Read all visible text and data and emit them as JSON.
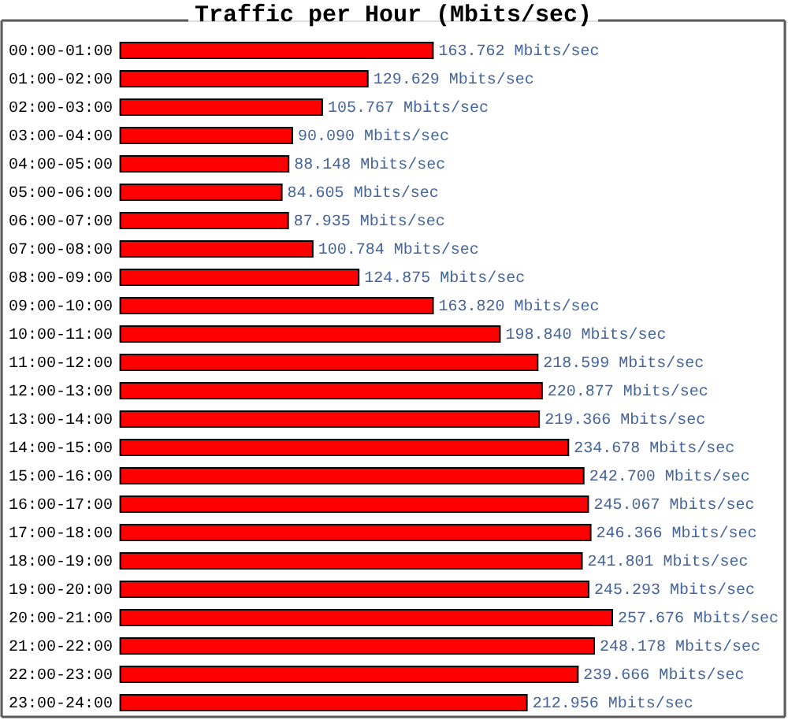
{
  "chart_data": {
    "type": "bar",
    "orientation": "horizontal",
    "title": "Traffic per Hour (Mbits/sec)",
    "categories": [
      "00:00-01:00",
      "01:00-02:00",
      "02:00-03:00",
      "03:00-04:00",
      "04:00-05:00",
      "05:00-06:00",
      "06:00-07:00",
      "07:00-08:00",
      "08:00-09:00",
      "09:00-10:00",
      "10:00-11:00",
      "11:00-12:00",
      "12:00-13:00",
      "13:00-14:00",
      "14:00-15:00",
      "15:00-16:00",
      "16:00-17:00",
      "17:00-18:00",
      "18:00-19:00",
      "19:00-20:00",
      "20:00-21:00",
      "21:00-22:00",
      "22:00-23:00",
      "23:00-24:00"
    ],
    "values": [
      163.762,
      129.629,
      105.767,
      90.09,
      88.148,
      84.605,
      87.935,
      100.784,
      124.875,
      163.82,
      198.84,
      218.599,
      220.877,
      219.366,
      234.678,
      242.7,
      245.067,
      246.366,
      241.801,
      245.293,
      257.676,
      248.178,
      239.666,
      212.956
    ],
    "value_labels": [
      "163.762 Mbits/sec",
      "129.629 Mbits/sec",
      "105.767 Mbits/sec",
      "90.090 Mbits/sec",
      "88.148 Mbits/sec",
      "84.605 Mbits/sec",
      "87.935 Mbits/sec",
      "100.784 Mbits/sec",
      "124.875 Mbits/sec",
      "163.820 Mbits/sec",
      "198.840 Mbits/sec",
      "218.599 Mbits/sec",
      "220.877 Mbits/sec",
      "219.366 Mbits/sec",
      "234.678 Mbits/sec",
      "242.700 Mbits/sec",
      "245.067 Mbits/sec",
      "246.366 Mbits/sec",
      "241.801 Mbits/sec",
      "245.293 Mbits/sec",
      "257.676 Mbits/sec",
      "248.178 Mbits/sec",
      "239.666 Mbits/sec",
      "212.956 Mbits/sec"
    ],
    "color": "#ff0000",
    "tick_labels": "y"
  }
}
